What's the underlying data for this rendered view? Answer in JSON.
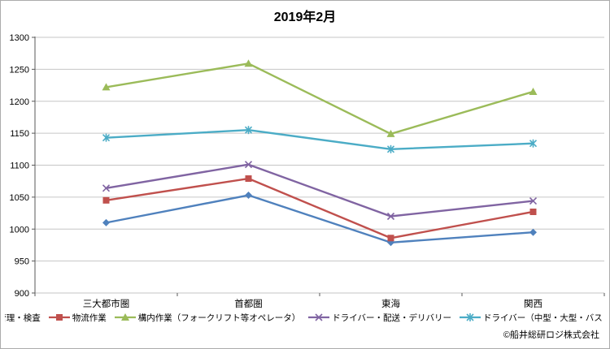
{
  "header": {
    "title": "2019年2月"
  },
  "footer": {
    "copyright": "©船井総研ロジ株式会社"
  },
  "chart_data": {
    "type": "line",
    "title": "2019年2月",
    "categories": [
      "三大都市圏",
      "首都圏",
      "東海",
      "関西"
    ],
    "series": [
      {
        "name": "品質管理・検査",
        "marker": "diamond",
        "color": "#4F81BD",
        "values": [
          1010,
          1053,
          979,
          995
        ]
      },
      {
        "name": "物流作業",
        "marker": "square",
        "color": "#C0504D",
        "values": [
          1045,
          1079,
          986,
          1027
        ]
      },
      {
        "name": "構内作業（フォークリフト等オペレータ）",
        "marker": "triangle",
        "color": "#9BBB59",
        "values": [
          1222,
          1259,
          1149,
          1215
        ]
      },
      {
        "name": "ドライバー・配送・デリバリー",
        "marker": "x",
        "color": "#8064A2",
        "values": [
          1064,
          1101,
          1020,
          1044
        ]
      },
      {
        "name": "ドライバー（中型・大型・バス・タクシー）",
        "marker": "asterisk",
        "color": "#4BACC6",
        "values": [
          1143,
          1155,
          1125,
          1134
        ]
      }
    ],
    "xlabel": "",
    "ylabel": "",
    "ylim": [
      900,
      1300
    ],
    "yticks": [
      900,
      950,
      1000,
      1050,
      1100,
      1150,
      1200,
      1250,
      1300
    ],
    "grid": true,
    "legend_position": "bottom",
    "gridline_color": "#c6c6c6",
    "axis_color": "#7f7f7f",
    "tick_color": "#595959",
    "text_color": "#000000"
  }
}
